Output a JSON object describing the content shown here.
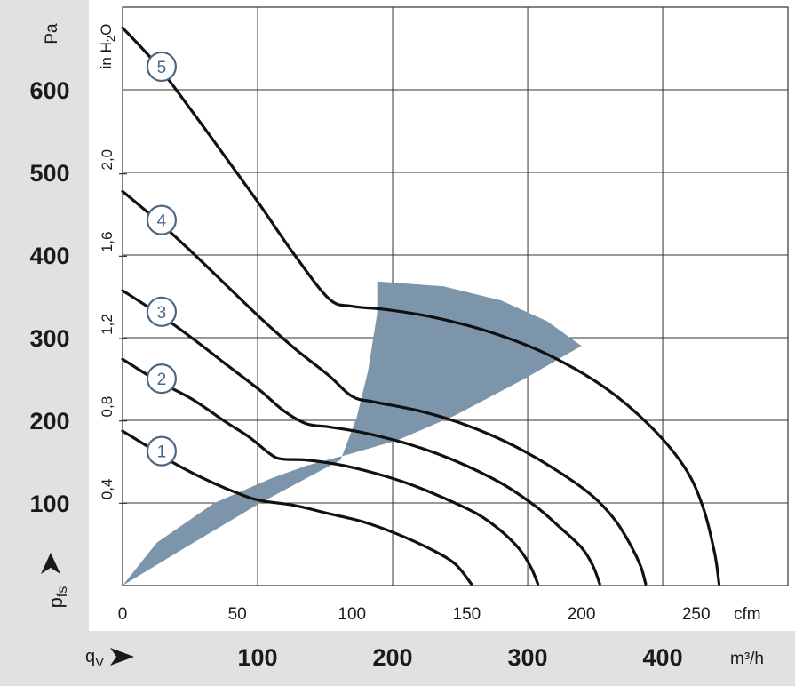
{
  "chart_data": {
    "type": "line",
    "title": "",
    "x_axis": {
      "primary_unit": "cfm",
      "primary_ticks": [
        "0",
        "50",
        "100",
        "150",
        "200",
        "250"
      ],
      "primary_range": [
        0,
        290
      ],
      "secondary_label": "qV",
      "secondary_unit": "m³/h",
      "secondary_ticks": [
        "100",
        "200",
        "300",
        "400"
      ]
    },
    "y_axis": {
      "primary_label": "pfs",
      "primary_unit": "Pa",
      "primary_ticks": [
        "100",
        "200",
        "300",
        "400",
        "500",
        "600"
      ],
      "primary_range": [
        0,
        700
      ],
      "secondary_unit": "in H2O",
      "secondary_ticks": [
        "0,4",
        "0,8",
        "1,2",
        "1,6",
        "2,0"
      ]
    },
    "grid": true,
    "series": [
      {
        "name": "1",
        "points": [
          [
            0,
            187
          ],
          [
            10,
            170
          ],
          [
            20,
            152
          ],
          [
            35,
            130
          ],
          [
            50,
            112
          ],
          [
            60,
            103
          ],
          [
            75,
            97
          ],
          [
            90,
            87
          ],
          [
            105,
            77
          ],
          [
            120,
            62
          ],
          [
            135,
            43
          ],
          [
            145,
            26
          ],
          [
            152,
            2
          ]
        ]
      },
      {
        "name": "2",
        "points": [
          [
            0,
            274
          ],
          [
            15,
            248
          ],
          [
            30,
            226
          ],
          [
            45,
            198
          ],
          [
            55,
            180
          ],
          [
            65,
            158
          ],
          [
            70,
            153
          ],
          [
            80,
            152
          ],
          [
            95,
            146
          ],
          [
            110,
            136
          ],
          [
            125,
            123
          ],
          [
            140,
            106
          ],
          [
            155,
            86
          ],
          [
            165,
            66
          ],
          [
            173,
            44
          ],
          [
            178,
            22
          ],
          [
            181,
            2
          ]
        ]
      },
      {
        "name": "3",
        "points": [
          [
            0,
            357
          ],
          [
            15,
            330
          ],
          [
            30,
            300
          ],
          [
            45,
            268
          ],
          [
            60,
            236
          ],
          [
            70,
            212
          ],
          [
            80,
            196
          ],
          [
            90,
            192
          ],
          [
            105,
            185
          ],
          [
            125,
            171
          ],
          [
            145,
            151
          ],
          [
            165,
            124
          ],
          [
            180,
            96
          ],
          [
            190,
            72
          ],
          [
            200,
            46
          ],
          [
            205,
            24
          ],
          [
            208,
            2
          ]
        ]
      },
      {
        "name": "4",
        "points": [
          [
            0,
            477
          ],
          [
            15,
            442
          ],
          [
            30,
            404
          ],
          [
            45,
            364
          ],
          [
            60,
            324
          ],
          [
            75,
            287
          ],
          [
            90,
            254
          ],
          [
            100,
            229
          ],
          [
            110,
            222
          ],
          [
            130,
            211
          ],
          [
            150,
            194
          ],
          [
            170,
            170
          ],
          [
            190,
            138
          ],
          [
            205,
            108
          ],
          [
            215,
            78
          ],
          [
            222,
            46
          ],
          [
            226,
            22
          ],
          [
            228,
            2
          ]
        ]
      },
      {
        "name": "5",
        "points": [
          [
            0,
            675
          ],
          [
            15,
            630
          ],
          [
            30,
            575
          ],
          [
            45,
            518
          ],
          [
            60,
            460
          ],
          [
            75,
            400
          ],
          [
            90,
            347
          ],
          [
            100,
            338
          ],
          [
            115,
            334
          ],
          [
            135,
            325
          ],
          [
            160,
            307
          ],
          [
            185,
            280
          ],
          [
            210,
            240
          ],
          [
            230,
            193
          ],
          [
            245,
            143
          ],
          [
            253,
            95
          ],
          [
            258,
            40
          ],
          [
            260,
            2
          ]
        ]
      }
    ],
    "operating_region": [
      [
        111,
        368
      ],
      [
        140,
        362
      ],
      [
        165,
        345
      ],
      [
        185,
        320
      ],
      [
        200,
        290
      ],
      [
        175,
        250
      ],
      [
        145,
        206
      ],
      [
        120,
        176
      ],
      [
        100,
        160
      ],
      [
        80,
        145
      ],
      [
        65,
        130
      ],
      [
        40,
        100
      ],
      [
        15,
        52
      ],
      [
        0,
        0
      ],
      [
        25,
        42
      ],
      [
        60,
        100
      ],
      [
        95,
        152
      ],
      [
        102,
        203
      ],
      [
        107,
        260
      ],
      [
        111,
        330
      ]
    ],
    "region_color": "#7d95aa",
    "curve_color": "#111111",
    "label_color": "#4a6785"
  }
}
